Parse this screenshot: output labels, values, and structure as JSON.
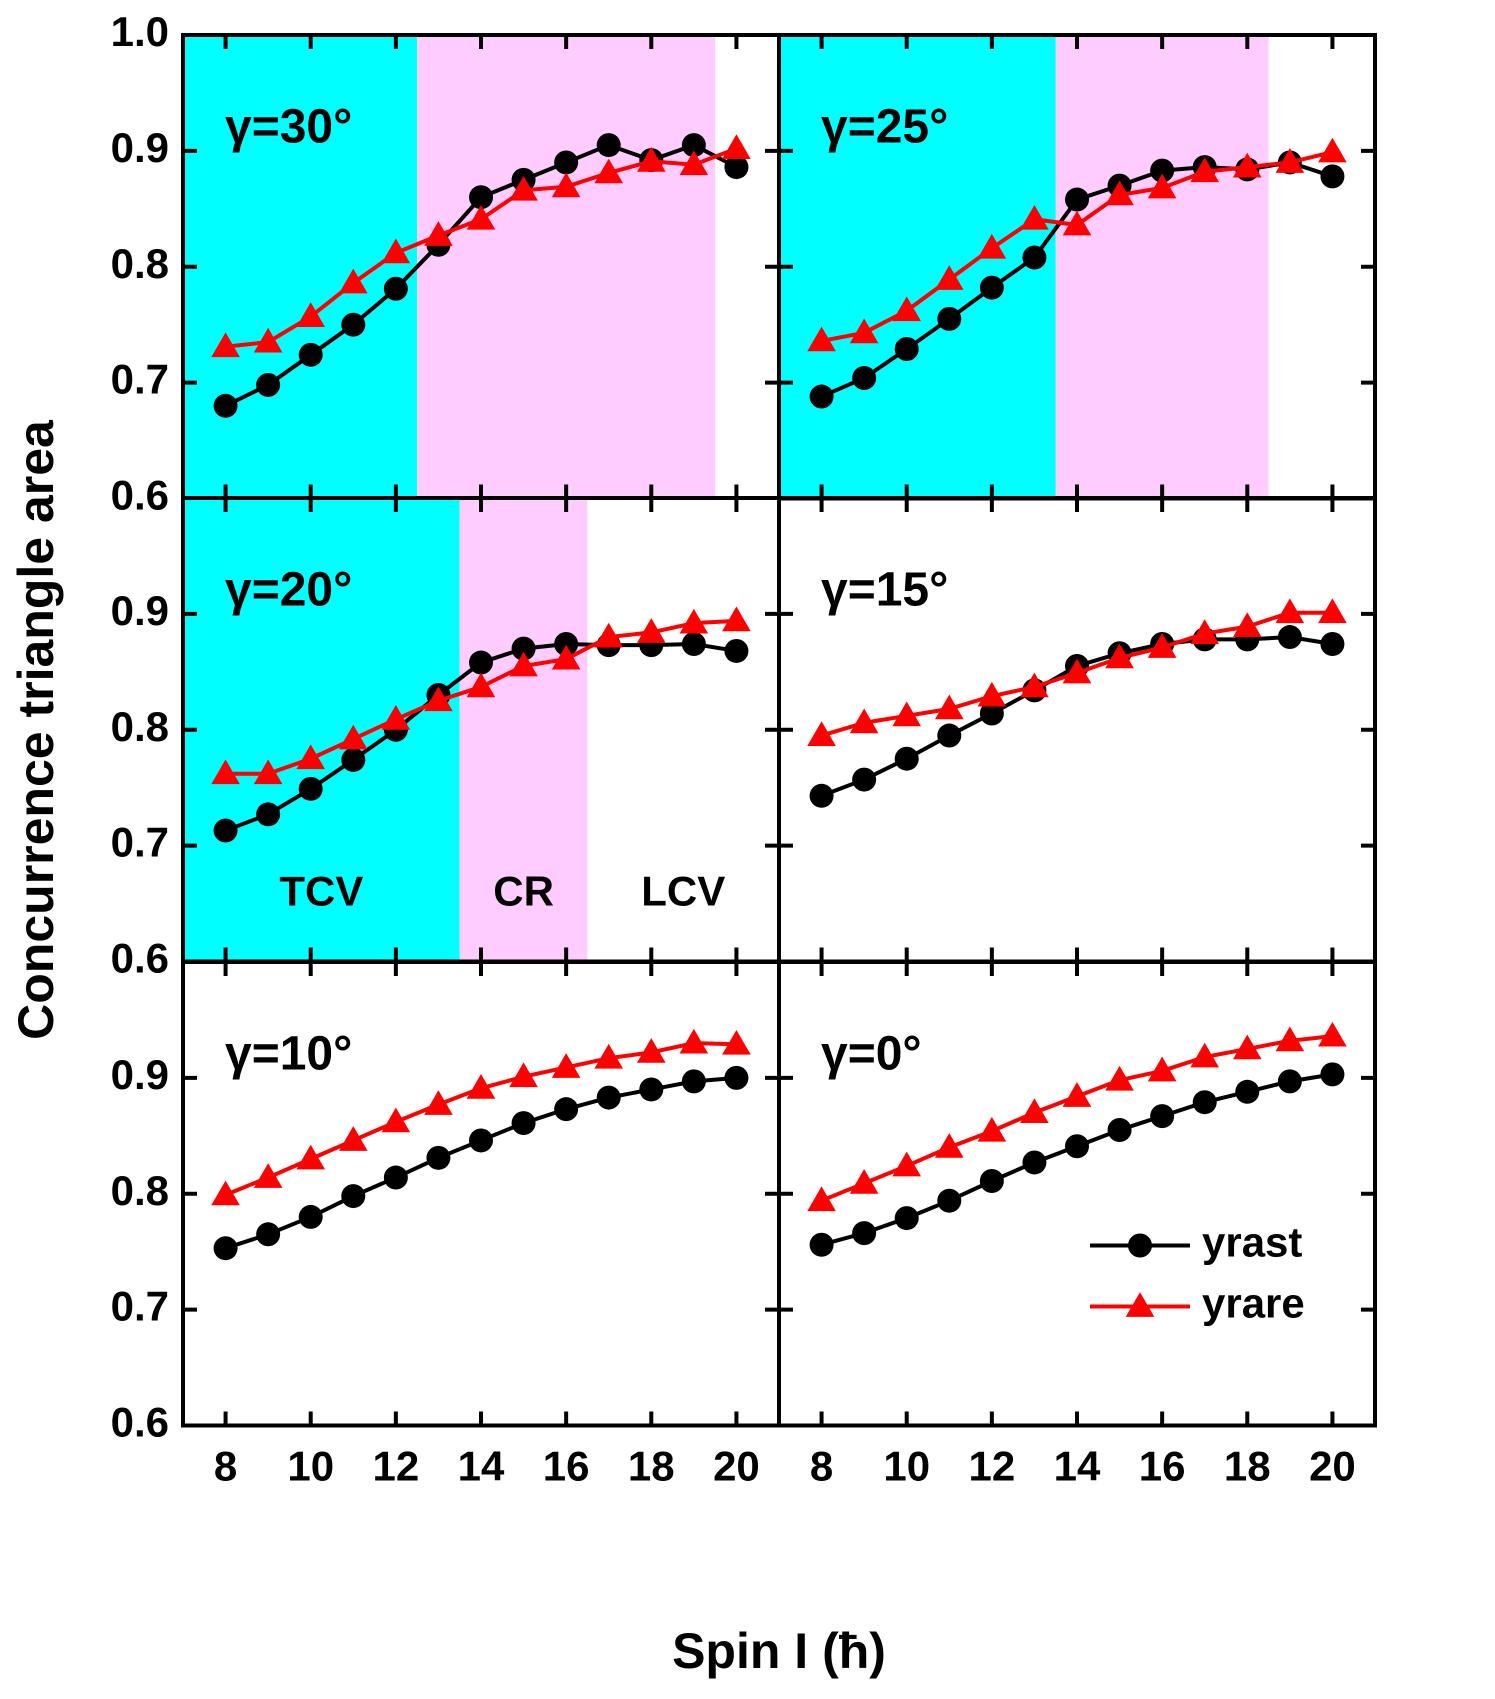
{
  "ylabel": "Concurrence triangle area",
  "xlabel": "Spin I (ħ)",
  "chart_data": [
    {
      "type": "line",
      "annotation": "γ=30°",
      "xlim": [
        7,
        21
      ],
      "ylim": [
        0.6,
        1.0
      ],
      "xticks": [
        8,
        10,
        12,
        14,
        16,
        18,
        20
      ],
      "yticks": [
        0.6,
        0.7,
        0.8,
        0.9,
        {
          "value": 1.0,
          "label": "1.0"
        }
      ],
      "regions": [
        {
          "x0": 7,
          "x1": 12.5,
          "color": "#00ffff"
        },
        {
          "x0": 12.5,
          "x1": 19.5,
          "color": "#ffccff"
        }
      ],
      "x": [
        8,
        9,
        10,
        11,
        12,
        13,
        14,
        15,
        16,
        17,
        18,
        19,
        20
      ],
      "series": [
        {
          "name": "yrast",
          "color": "#000000",
          "marker": "circle",
          "values": [
            0.68,
            0.698,
            0.724,
            0.75,
            0.781,
            0.819,
            0.86,
            0.875,
            0.89,
            0.905,
            0.892,
            0.905,
            0.886
          ]
        },
        {
          "name": "yrare",
          "color": "#ff0000",
          "marker": "triangle",
          "values": [
            0.731,
            0.735,
            0.757,
            0.786,
            0.812,
            0.827,
            0.841,
            0.866,
            0.869,
            0.881,
            0.891,
            0.888,
            0.902
          ]
        }
      ]
    },
    {
      "type": "line",
      "annotation": "γ=25°",
      "xlim": [
        7,
        21
      ],
      "ylim": [
        0.6,
        1.0
      ],
      "xticks": [
        8,
        10,
        12,
        14,
        16,
        18,
        20
      ],
      "yticks": [
        0.6,
        0.7,
        0.8,
        0.9,
        {
          "value": 1.0,
          "label": "1.0"
        }
      ],
      "regions": [
        {
          "x0": 7,
          "x1": 13.5,
          "color": "#00ffff"
        },
        {
          "x0": 13.5,
          "x1": 18.5,
          "color": "#ffccff"
        }
      ],
      "x": [
        8,
        9,
        10,
        11,
        12,
        13,
        14,
        15,
        16,
        17,
        18,
        19,
        20
      ],
      "series": [
        {
          "name": "yrast",
          "color": "#000000",
          "marker": "circle",
          "values": [
            0.688,
            0.704,
            0.729,
            0.755,
            0.782,
            0.808,
            0.858,
            0.87,
            0.883,
            0.886,
            0.884,
            0.89,
            0.878
          ]
        },
        {
          "name": "yrare",
          "color": "#ff0000",
          "marker": "triangle",
          "values": [
            0.736,
            0.743,
            0.762,
            0.789,
            0.816,
            0.841,
            0.836,
            0.862,
            0.868,
            0.882,
            0.886,
            0.89,
            0.899
          ]
        }
      ]
    },
    {
      "type": "line",
      "annotation": "γ=20°",
      "xlim": [
        7,
        21
      ],
      "ylim": [
        0.6,
        1.0
      ],
      "xticks": [
        8,
        10,
        12,
        14,
        16,
        18,
        20
      ],
      "yticks": [
        0.6,
        0.7,
        0.8,
        0.9
      ],
      "regions": [
        {
          "x0": 7,
          "x1": 13.5,
          "color": "#00ffff",
          "label": "TCV"
        },
        {
          "x0": 13.5,
          "x1": 16.5,
          "color": "#ffccff",
          "label": "CR"
        },
        {
          "x0": 16.5,
          "x1": 21,
          "color": "#ffffff",
          "label": "LCV"
        }
      ],
      "x": [
        8,
        9,
        10,
        11,
        12,
        13,
        14,
        15,
        16,
        17,
        18,
        19,
        20
      ],
      "series": [
        {
          "name": "yrast",
          "color": "#000000",
          "marker": "circle",
          "values": [
            0.713,
            0.727,
            0.749,
            0.774,
            0.8,
            0.83,
            0.858,
            0.87,
            0.874,
            0.873,
            0.873,
            0.874,
            0.868
          ]
        },
        {
          "name": "yrare",
          "color": "#ff0000",
          "marker": "triangle",
          "values": [
            0.762,
            0.762,
            0.775,
            0.792,
            0.809,
            0.825,
            0.837,
            0.855,
            0.861,
            0.88,
            0.884,
            0.892,
            0.894
          ]
        }
      ]
    },
    {
      "type": "line",
      "annotation": "γ=15°",
      "xlim": [
        7,
        21
      ],
      "ylim": [
        0.6,
        1.0
      ],
      "xticks": [
        8,
        10,
        12,
        14,
        16,
        18,
        20
      ],
      "yticks": [
        0.6,
        0.7,
        0.8,
        0.9
      ],
      "x": [
        8,
        9,
        10,
        11,
        12,
        13,
        14,
        15,
        16,
        17,
        18,
        19,
        20
      ],
      "series": [
        {
          "name": "yrast",
          "color": "#000000",
          "marker": "circle",
          "values": [
            0.743,
            0.757,
            0.775,
            0.795,
            0.814,
            0.834,
            0.855,
            0.866,
            0.874,
            0.878,
            0.878,
            0.88,
            0.874
          ]
        },
        {
          "name": "yrare",
          "color": "#ff0000",
          "marker": "triangle",
          "values": [
            0.795,
            0.806,
            0.812,
            0.818,
            0.829,
            0.837,
            0.849,
            0.862,
            0.871,
            0.883,
            0.889,
            0.901,
            0.901
          ]
        }
      ]
    },
    {
      "type": "line",
      "annotation": "γ=10°",
      "xlim": [
        7,
        21
      ],
      "ylim": [
        0.6,
        1.0
      ],
      "xticks": [
        8,
        10,
        12,
        14,
        16,
        18,
        20
      ],
      "yticks": [
        0.6,
        0.7,
        0.8,
        0.9
      ],
      "x": [
        8,
        9,
        10,
        11,
        12,
        13,
        14,
        15,
        16,
        17,
        18,
        19,
        20
      ],
      "series": [
        {
          "name": "yrast",
          "color": "#000000",
          "marker": "circle",
          "values": [
            0.753,
            0.765,
            0.78,
            0.798,
            0.814,
            0.831,
            0.846,
            0.861,
            0.873,
            0.883,
            0.89,
            0.897,
            0.9
          ]
        },
        {
          "name": "yrare",
          "color": "#ff0000",
          "marker": "triangle",
          "values": [
            0.799,
            0.814,
            0.83,
            0.846,
            0.862,
            0.877,
            0.891,
            0.901,
            0.909,
            0.917,
            0.922,
            0.93,
            0.929
          ]
        }
      ]
    },
    {
      "type": "line",
      "annotation": "γ=0°",
      "xlim": [
        7,
        21
      ],
      "ylim": [
        0.6,
        1.0
      ],
      "xticks": [
        8,
        10,
        12,
        14,
        16,
        18,
        20
      ],
      "yticks": [
        0.6,
        0.7,
        0.8,
        0.9
      ],
      "legend": "lower right",
      "x": [
        8,
        9,
        10,
        11,
        12,
        13,
        14,
        15,
        16,
        17,
        18,
        19,
        20
      ],
      "series": [
        {
          "name": "yrast",
          "color": "#000000",
          "marker": "circle",
          "values": [
            0.756,
            0.766,
            0.779,
            0.794,
            0.811,
            0.827,
            0.841,
            0.855,
            0.867,
            0.879,
            0.888,
            0.897,
            0.903
          ]
        },
        {
          "name": "yrare",
          "color": "#ff0000",
          "marker": "triangle",
          "values": [
            0.794,
            0.809,
            0.824,
            0.84,
            0.854,
            0.87,
            0.884,
            0.898,
            0.906,
            0.918,
            0.925,
            0.932,
            0.936
          ]
        }
      ]
    }
  ]
}
